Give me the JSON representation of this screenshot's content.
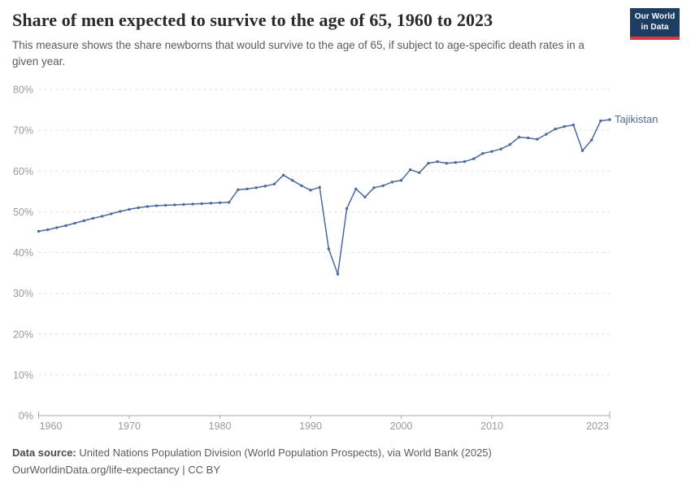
{
  "header": {
    "title": "Share of men expected to survive to the age of 65, 1960 to 2023",
    "subtitle": "This measure shows the share newborns that would survive to the age of 65, if subject to age-specific death rates in a given year.",
    "logo": {
      "line1": "Our World",
      "line2": "in Data"
    }
  },
  "chart_data": {
    "type": "line",
    "title": "Share of men expected to survive to the age of 65, 1960 to 2023",
    "xlabel": "",
    "ylabel": "",
    "xlim": [
      1960,
      2023
    ],
    "ylim": [
      0,
      80
    ],
    "grid": "horizontal-dashed",
    "legend_position": "end-of-line-label",
    "x_ticks": [
      1960,
      1970,
      1980,
      1990,
      2000,
      2010,
      2023
    ],
    "y_ticks": [
      "0%",
      "10%",
      "20%",
      "30%",
      "40%",
      "50%",
      "60%",
      "70%",
      "80%"
    ],
    "series": [
      {
        "name": "Tajikistan",
        "color": "#4c6a9c",
        "years": [
          1960,
          1961,
          1962,
          1963,
          1964,
          1965,
          1966,
          1967,
          1968,
          1969,
          1970,
          1971,
          1972,
          1973,
          1974,
          1975,
          1976,
          1977,
          1978,
          1979,
          1980,
          1981,
          1982,
          1983,
          1984,
          1985,
          1986,
          1987,
          1988,
          1989,
          1990,
          1991,
          1992,
          1993,
          1994,
          1995,
          1996,
          1997,
          1998,
          1999,
          2000,
          2001,
          2002,
          2003,
          2004,
          2005,
          2006,
          2007,
          2008,
          2009,
          2010,
          2011,
          2012,
          2013,
          2014,
          2015,
          2016,
          2017,
          2018,
          2019,
          2020,
          2021,
          2022,
          2023
        ],
        "values": [
          45.2,
          45.6,
          46.1,
          46.6,
          47.2,
          47.8,
          48.4,
          48.9,
          49.5,
          50.1,
          50.6,
          51.0,
          51.3,
          51.5,
          51.6,
          51.7,
          51.8,
          51.9,
          52.0,
          52.1,
          52.2,
          52.3,
          55.4,
          55.6,
          55.9,
          56.3,
          56.8,
          59.0,
          57.7,
          56.4,
          55.3,
          56.0,
          40.9,
          34.7,
          50.8,
          55.6,
          53.6,
          55.9,
          56.4,
          57.3,
          57.7,
          60.3,
          59.6,
          61.9,
          62.3,
          61.9,
          62.1,
          62.3,
          63.0,
          64.3,
          64.8,
          65.4,
          66.5,
          68.3,
          68.1,
          67.8,
          69.0,
          70.3,
          70.9,
          71.3,
          65.0,
          67.6,
          72.3,
          72.6
        ]
      }
    ]
  },
  "footer": {
    "source_label": "Data source:",
    "source_text": "United Nations Population Division (World Population Prospects), via World Bank (2025)",
    "link_line": "OurWorldinData.org/life-expectancy | CC BY"
  },
  "colors": {
    "line": "#4c6a9c",
    "series_label": "#4c6a9c",
    "gridline": "#e0e0e0",
    "axis": "#a8a8a8",
    "tick_label": "#999999",
    "title": "#2a2a2a",
    "subtitle": "#5b5b5b",
    "footer": "#5b5b5b",
    "logo_bg": "#1d3d63",
    "logo_accent": "#e0373f"
  }
}
